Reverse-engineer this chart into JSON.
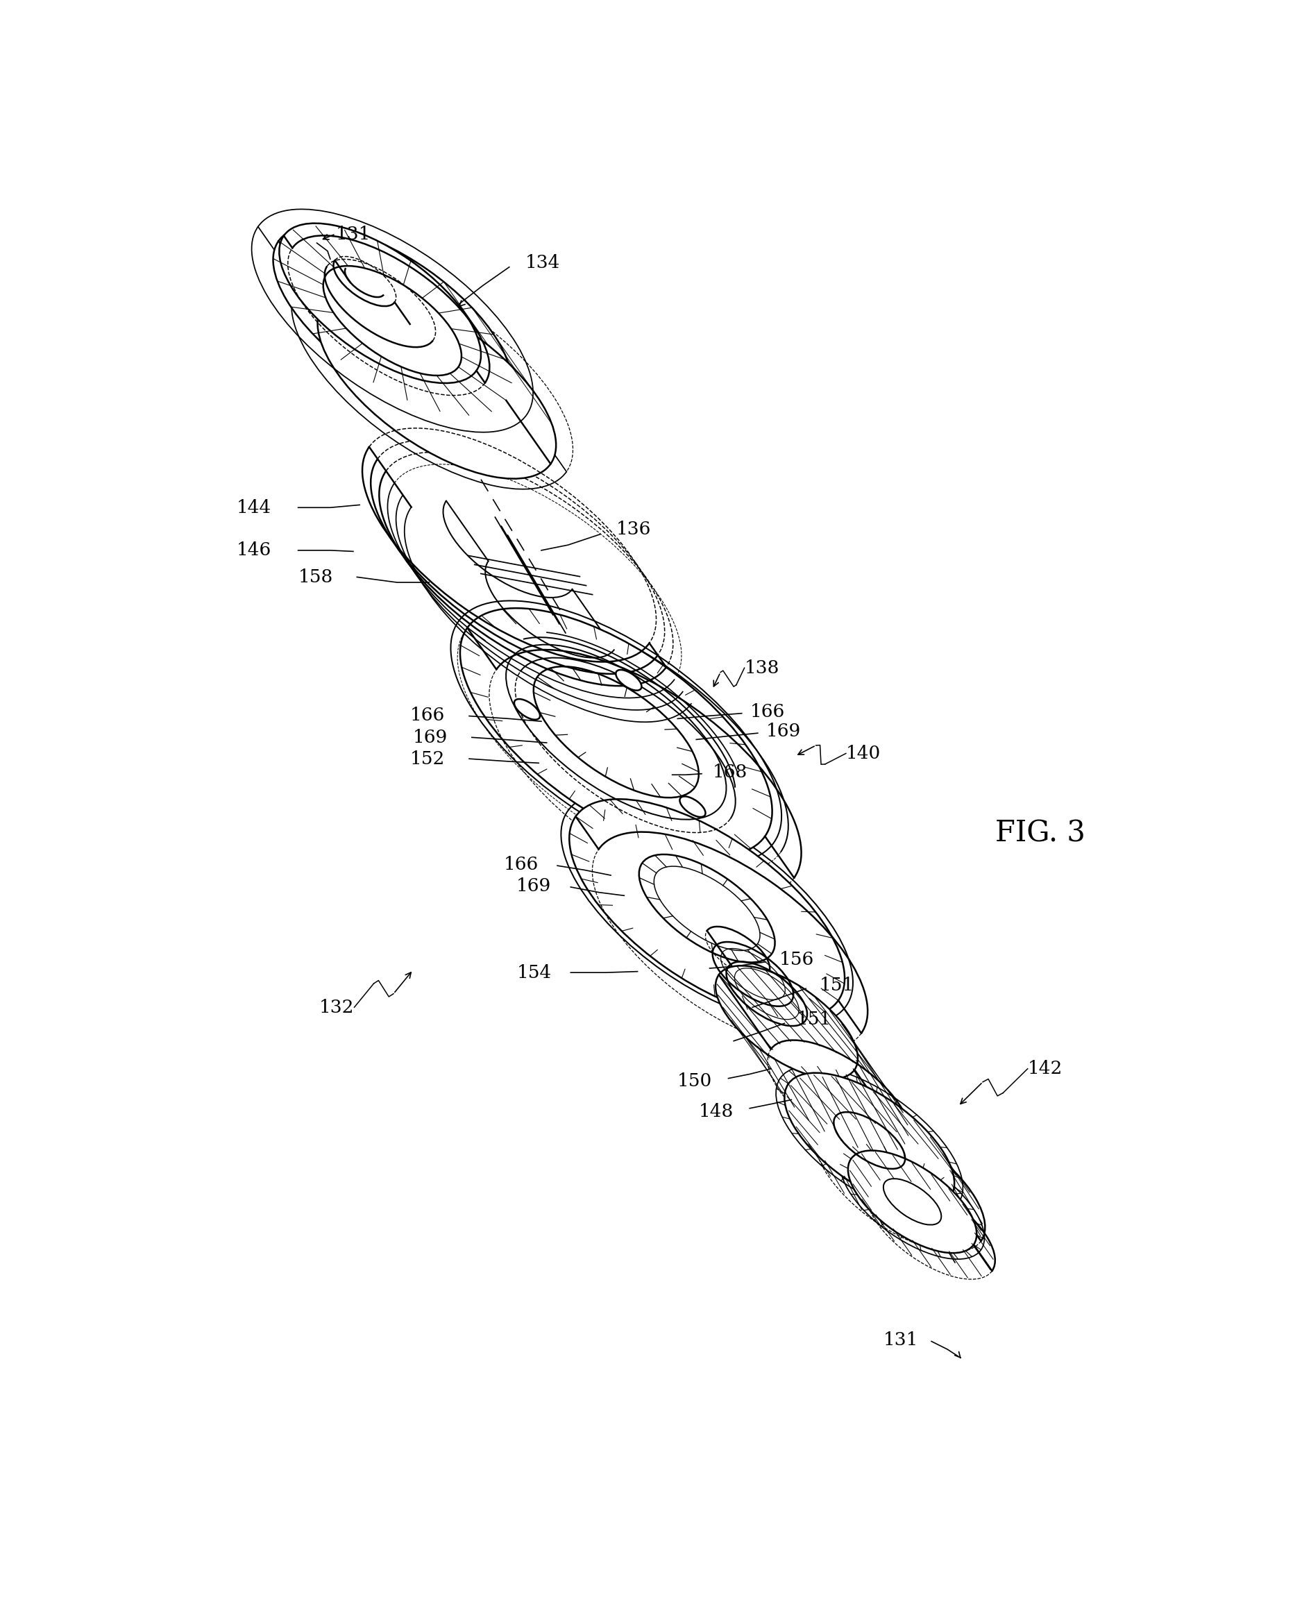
{
  "background_color": "#ffffff",
  "line_color": "#000000",
  "lw": 1.8,
  "lw_thin": 0.9,
  "fig_width": 18.9,
  "fig_height": 23.08,
  "title": "FIG. 3",
  "label_fontsize": 19,
  "title_fontsize": 30
}
